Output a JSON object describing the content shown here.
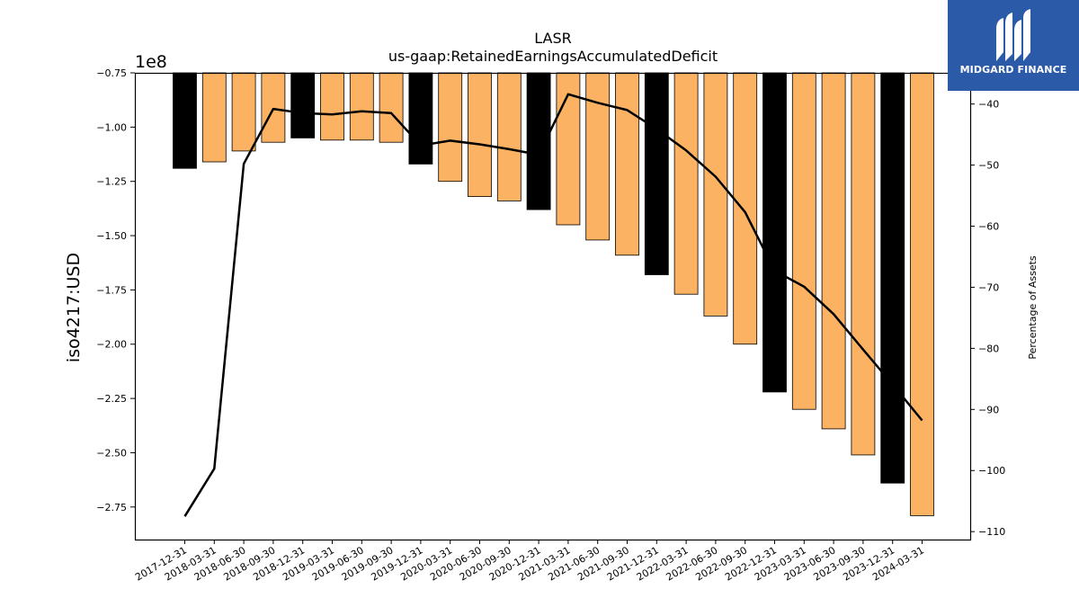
{
  "chart_data": {
    "type": "bar+line",
    "title": "LASR",
    "subtitle": "us-gaap:RetainedEarningsAccumulatedDeficit",
    "ylabel": "iso4217:USD",
    "y_exponent_label": "1e8",
    "y2label": "Percentage of Assets",
    "ylim": [
      -2.9,
      -0.75
    ],
    "y2lim": [
      -111.3,
      -34.9
    ],
    "yticks": [
      "−0.75",
      "−1.00",
      "−1.25",
      "−1.50",
      "−1.75",
      "−2.00",
      "−2.25",
      "−2.50",
      "−2.75"
    ],
    "y2ticks": [
      "−40",
      "−50",
      "−60",
      "−70",
      "−80",
      "−90",
      "−100",
      "−110"
    ],
    "categories": [
      "2017-12-31",
      "2018-03-31",
      "2018-06-30",
      "2018-09-30",
      "2018-12-31",
      "2019-03-31",
      "2019-06-30",
      "2019-09-30",
      "2019-12-31",
      "2020-03-31",
      "2020-06-30",
      "2020-09-30",
      "2020-12-31",
      "2021-03-31",
      "2021-06-30",
      "2021-09-30",
      "2021-12-31",
      "2022-03-31",
      "2022-06-30",
      "2022-09-30",
      "2022-12-31",
      "2023-03-31",
      "2023-06-30",
      "2023-09-30",
      "2023-12-31",
      "2024-03-31"
    ],
    "series": [
      {
        "kind": "bar",
        "values": [
          -1.19,
          -1.16,
          -1.11,
          -1.07,
          -1.05,
          -1.06,
          -1.06,
          -1.07,
          -1.17,
          -1.25,
          -1.32,
          -1.34,
          -1.38,
          -1.45,
          -1.52,
          -1.59,
          -1.68,
          -1.77,
          -1.87,
          -2.0,
          -2.22,
          -2.3,
          -2.39,
          -2.51,
          -2.64,
          -2.79
        ],
        "colors_by_point": [
          "#000000",
          "#fbb263",
          "#fbb263",
          "#fbb263",
          "#000000",
          "#fbb263",
          "#fbb263",
          "#fbb263",
          "#000000",
          "#fbb263",
          "#fbb263",
          "#fbb263",
          "#000000",
          "#fbb263",
          "#fbb263",
          "#fbb263",
          "#000000",
          "#fbb263",
          "#fbb263",
          "#fbb263",
          "#000000",
          "#fbb263",
          "#fbb263",
          "#fbb263",
          "#000000",
          "#fbb263"
        ]
      },
      {
        "kind": "line",
        "axis": "right",
        "color": "#000000",
        "values": [
          -107.5,
          -99.7,
          -49.8,
          -40.8,
          -41.5,
          -41.7,
          -41.2,
          -41.5,
          -46.8,
          -46.0,
          -46.6,
          -47.4,
          -48.3,
          -38.4,
          -39.8,
          -41.0,
          -44.1,
          -47.6,
          -51.9,
          -57.7,
          -67.3,
          -69.9,
          -74.4,
          -80.2,
          -85.9,
          -91.8
        ]
      }
    ],
    "grid": false,
    "legend": "none"
  },
  "logo": {
    "text": "MIDGARD FINANCE",
    "background": "#2a5aa8"
  }
}
